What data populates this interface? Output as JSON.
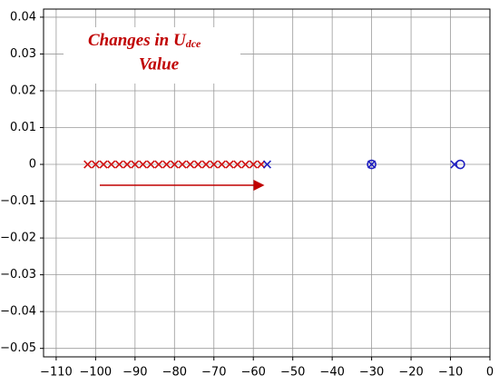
{
  "chart_data": {
    "type": "scatter",
    "annotation": {
      "main": "Changes in U",
      "sub": "dce",
      "line2": "Value"
    },
    "xlim": [
      -113.2,
      0
    ],
    "ylim": [
      -0.0523,
      0.0422
    ],
    "xticks": [
      {
        "value": -110,
        "label": "−110"
      },
      {
        "value": -100,
        "label": "−100"
      },
      {
        "value": -90,
        "label": "−90"
      },
      {
        "value": -80,
        "label": "−80"
      },
      {
        "value": -70,
        "label": "−70"
      },
      {
        "value": -60,
        "label": "−60"
      },
      {
        "value": -50,
        "label": "−50"
      },
      {
        "value": -40,
        "label": "−40"
      },
      {
        "value": -30,
        "label": "−30"
      },
      {
        "value": -20,
        "label": "−20"
      },
      {
        "value": -10,
        "label": "−10"
      },
      0
    ],
    "yticks": [
      {
        "value": -0.05,
        "label": "−0.05"
      },
      {
        "value": -0.04,
        "label": "−0.04"
      },
      {
        "value": -0.03,
        "label": "−0.03"
      },
      {
        "value": -0.02,
        "label": "−0.02"
      },
      {
        "value": -0.01,
        "label": "−0.01"
      },
      0,
      0.01,
      0.02,
      0.03,
      0.04
    ],
    "grid": true,
    "series": [
      {
        "marker": "x",
        "color": "#d01010",
        "x": [
          -102,
          -100,
          -98,
          -96,
          -94,
          -92,
          -90,
          -88,
          -86,
          -84,
          -82,
          -80,
          -78,
          -76,
          -74,
          -72,
          -70,
          -68,
          -66,
          -64,
          -62,
          -60,
          -58
        ],
        "values": [
          0,
          0,
          0,
          0,
          0,
          0,
          0,
          0,
          0,
          0,
          0,
          0,
          0,
          0,
          0,
          0,
          0,
          0,
          0,
          0,
          0,
          0,
          0
        ]
      },
      {
        "marker": "x",
        "color": "#2020c0",
        "x": [
          -56.5,
          -30,
          -9
        ],
        "values": [
          0,
          0,
          0
        ]
      },
      {
        "marker": "o",
        "color": "#2020c0",
        "x": [
          -30,
          -7.5
        ],
        "values": [
          0,
          0
        ]
      }
    ]
  }
}
